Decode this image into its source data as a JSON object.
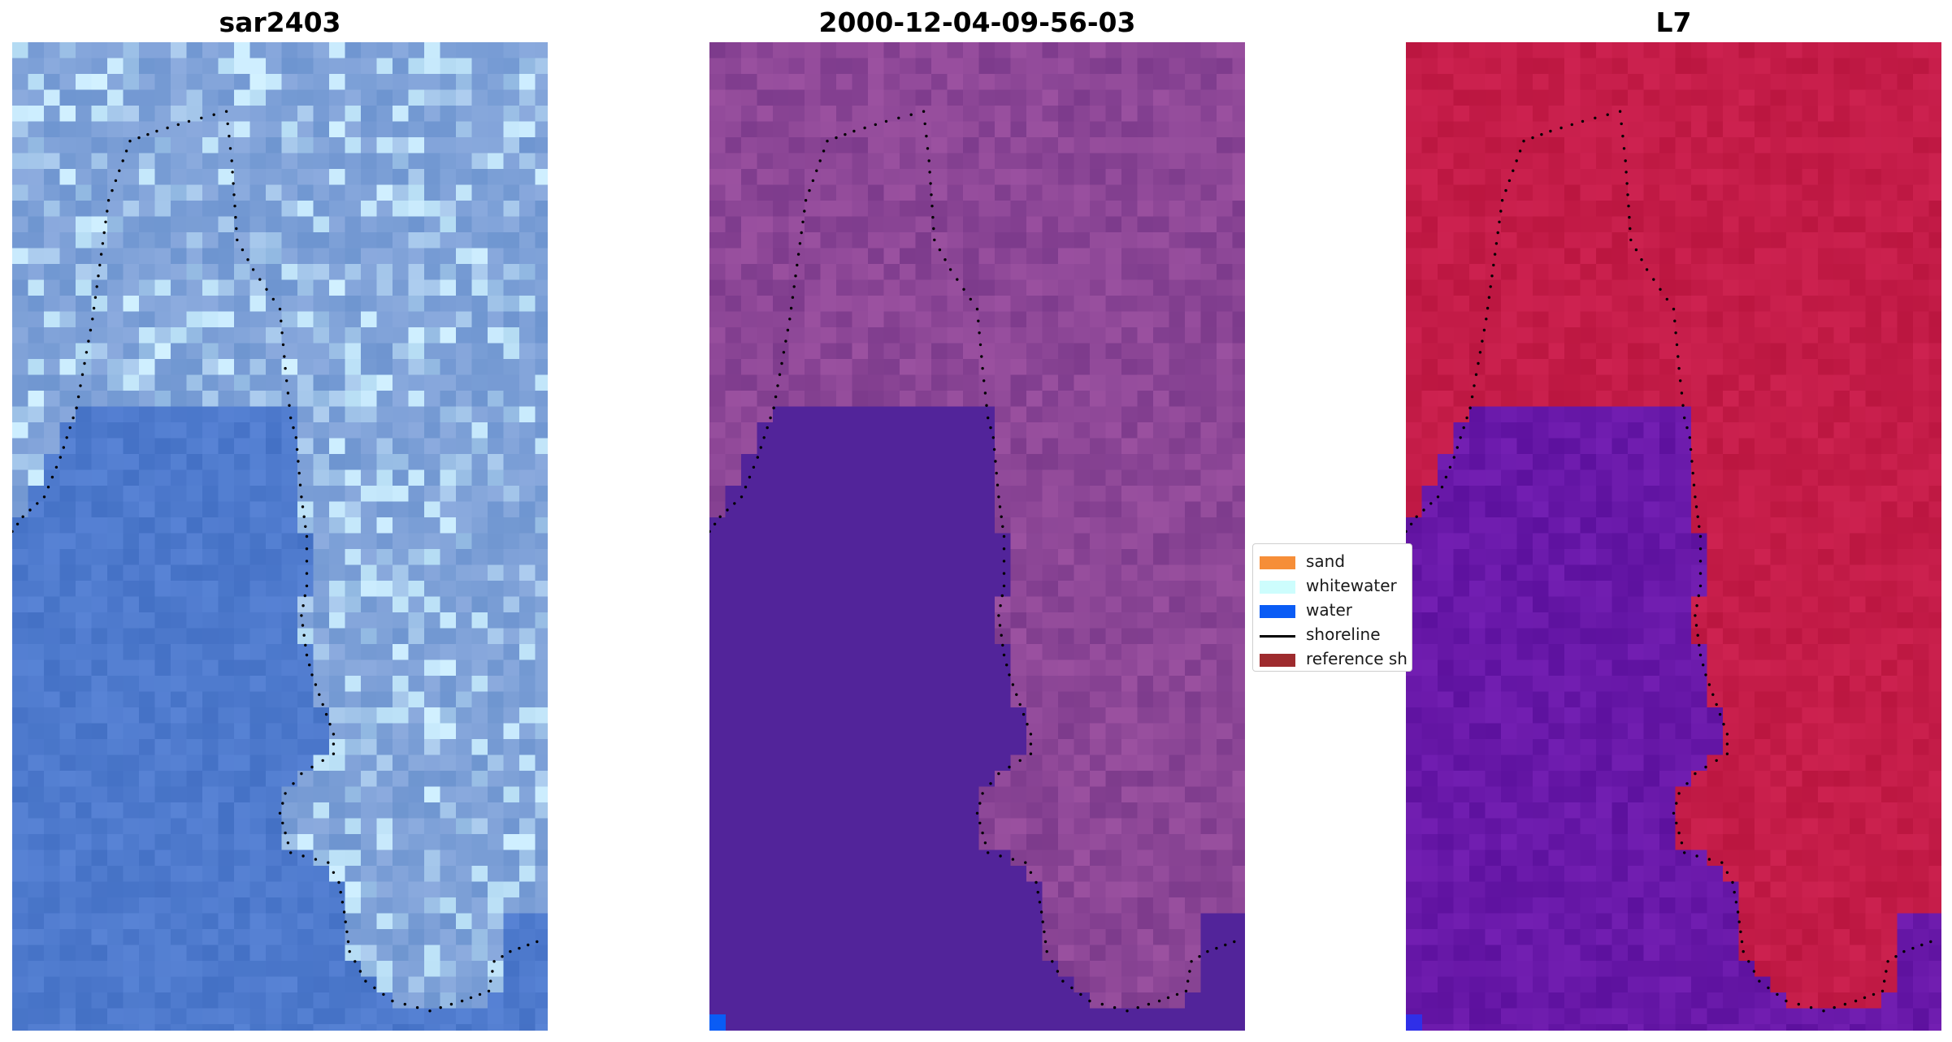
{
  "panels": [
    {
      "title": "sar2403",
      "style": "rgb"
    },
    {
      "title": "2000-12-04-09-56-03",
      "style": "class"
    },
    {
      "title": "L7",
      "style": "index"
    }
  ],
  "legend": {
    "items": [
      {
        "label": "sand",
        "kind": "patch",
        "color": "#f68e38"
      },
      {
        "label": "whitewater",
        "kind": "patch",
        "color": "#cdfdfd"
      },
      {
        "label": "water",
        "kind": "patch",
        "color": "#0a5cf5"
      },
      {
        "label": "shoreline",
        "kind": "line",
        "color": "#000000"
      },
      {
        "label": "reference sh",
        "kind": "patch",
        "color": "#9e2b2e"
      }
    ]
  },
  "colors": {
    "water_blue": "#4d7dcf",
    "class_water": "#52249a",
    "index_land": "#c31a45",
    "index_water": "#6a1ea8",
    "shoreline_dot": "#000000"
  }
}
